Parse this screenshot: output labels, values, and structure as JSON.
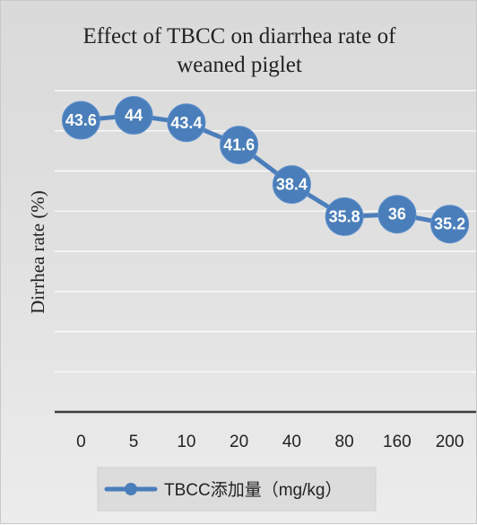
{
  "chart_data": {
    "type": "line",
    "title_line1": "Effect of TBCC on diarrhea rate of",
    "title_line2": "weaned piglet",
    "xlabel": "",
    "ylabel": "Dirrhea rate (%)",
    "categories": [
      "0",
      "5",
      "10",
      "20",
      "40",
      "80",
      "160",
      "200"
    ],
    "ylim": [
      20,
      46
    ],
    "grid": true,
    "y_axis_labels_shown": false,
    "legend_position": "bottom",
    "series": [
      {
        "name": "TBCC添加量（mg/kg）",
        "values": [
          43.6,
          44,
          43.4,
          41.6,
          38.4,
          35.8,
          36,
          35.2
        ],
        "data_labels": [
          "43.6",
          "44",
          "43.4",
          "41.6",
          "38.4",
          "35.8",
          "36",
          "35.2"
        ]
      }
    ],
    "colors": {
      "series": "#4a7ebb",
      "grid": "#ffffff",
      "axis": "#3c3c3c"
    }
  }
}
